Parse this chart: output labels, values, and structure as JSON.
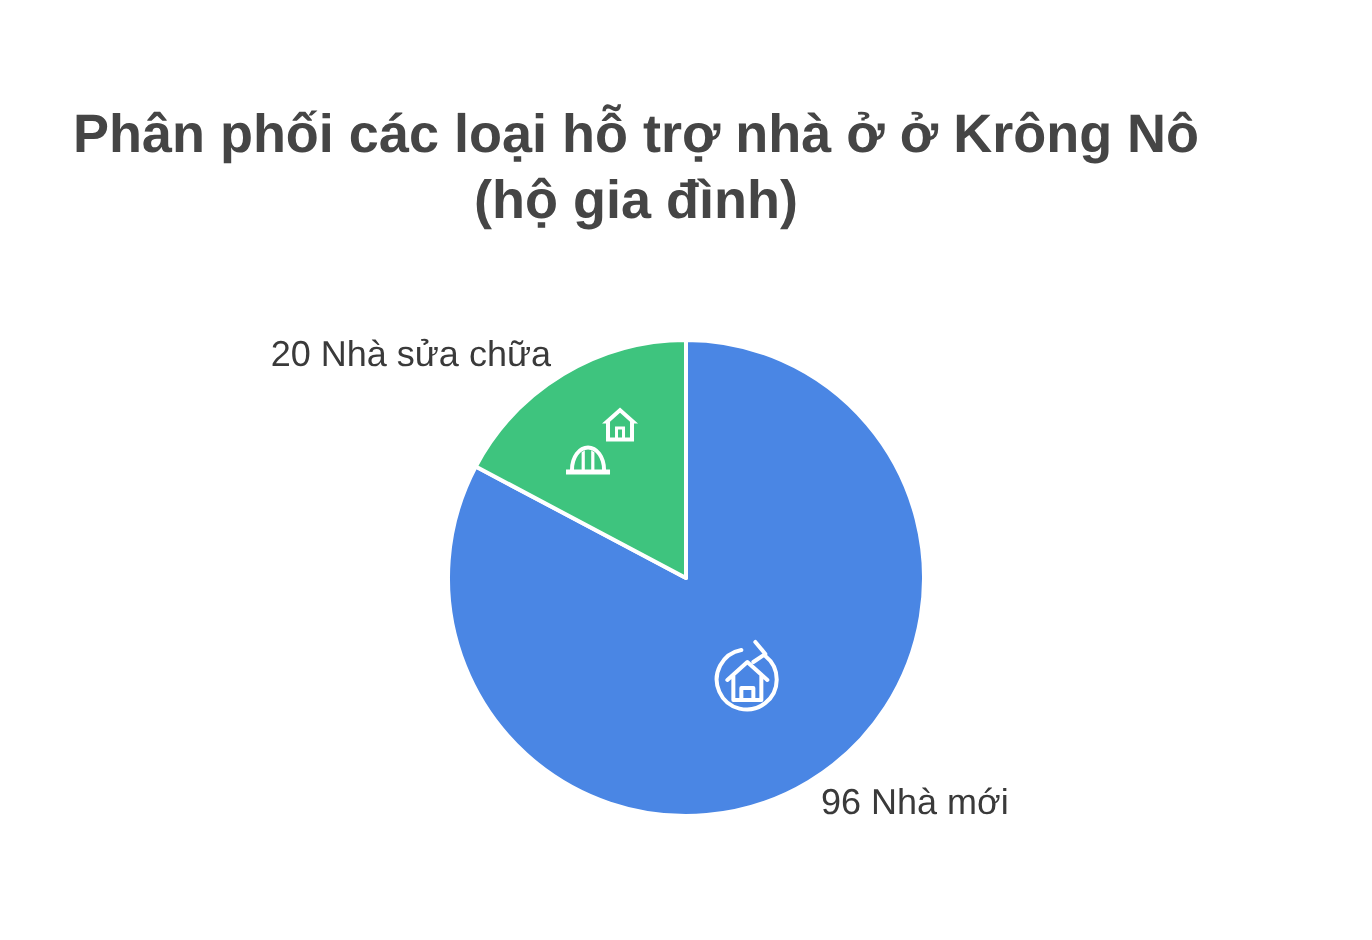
{
  "chart_data": {
    "type": "pie",
    "title": "Phân phối các loại hỗ trợ nhà ở ở Krông Nô (hộ gia đình)",
    "categories": [
      "Nhà mới",
      "Nhà sửa chữa"
    ],
    "values": [
      96,
      20
    ],
    "colors": [
      "#4a86e4",
      "#3ec47e"
    ],
    "data_labels": true
  }
}
